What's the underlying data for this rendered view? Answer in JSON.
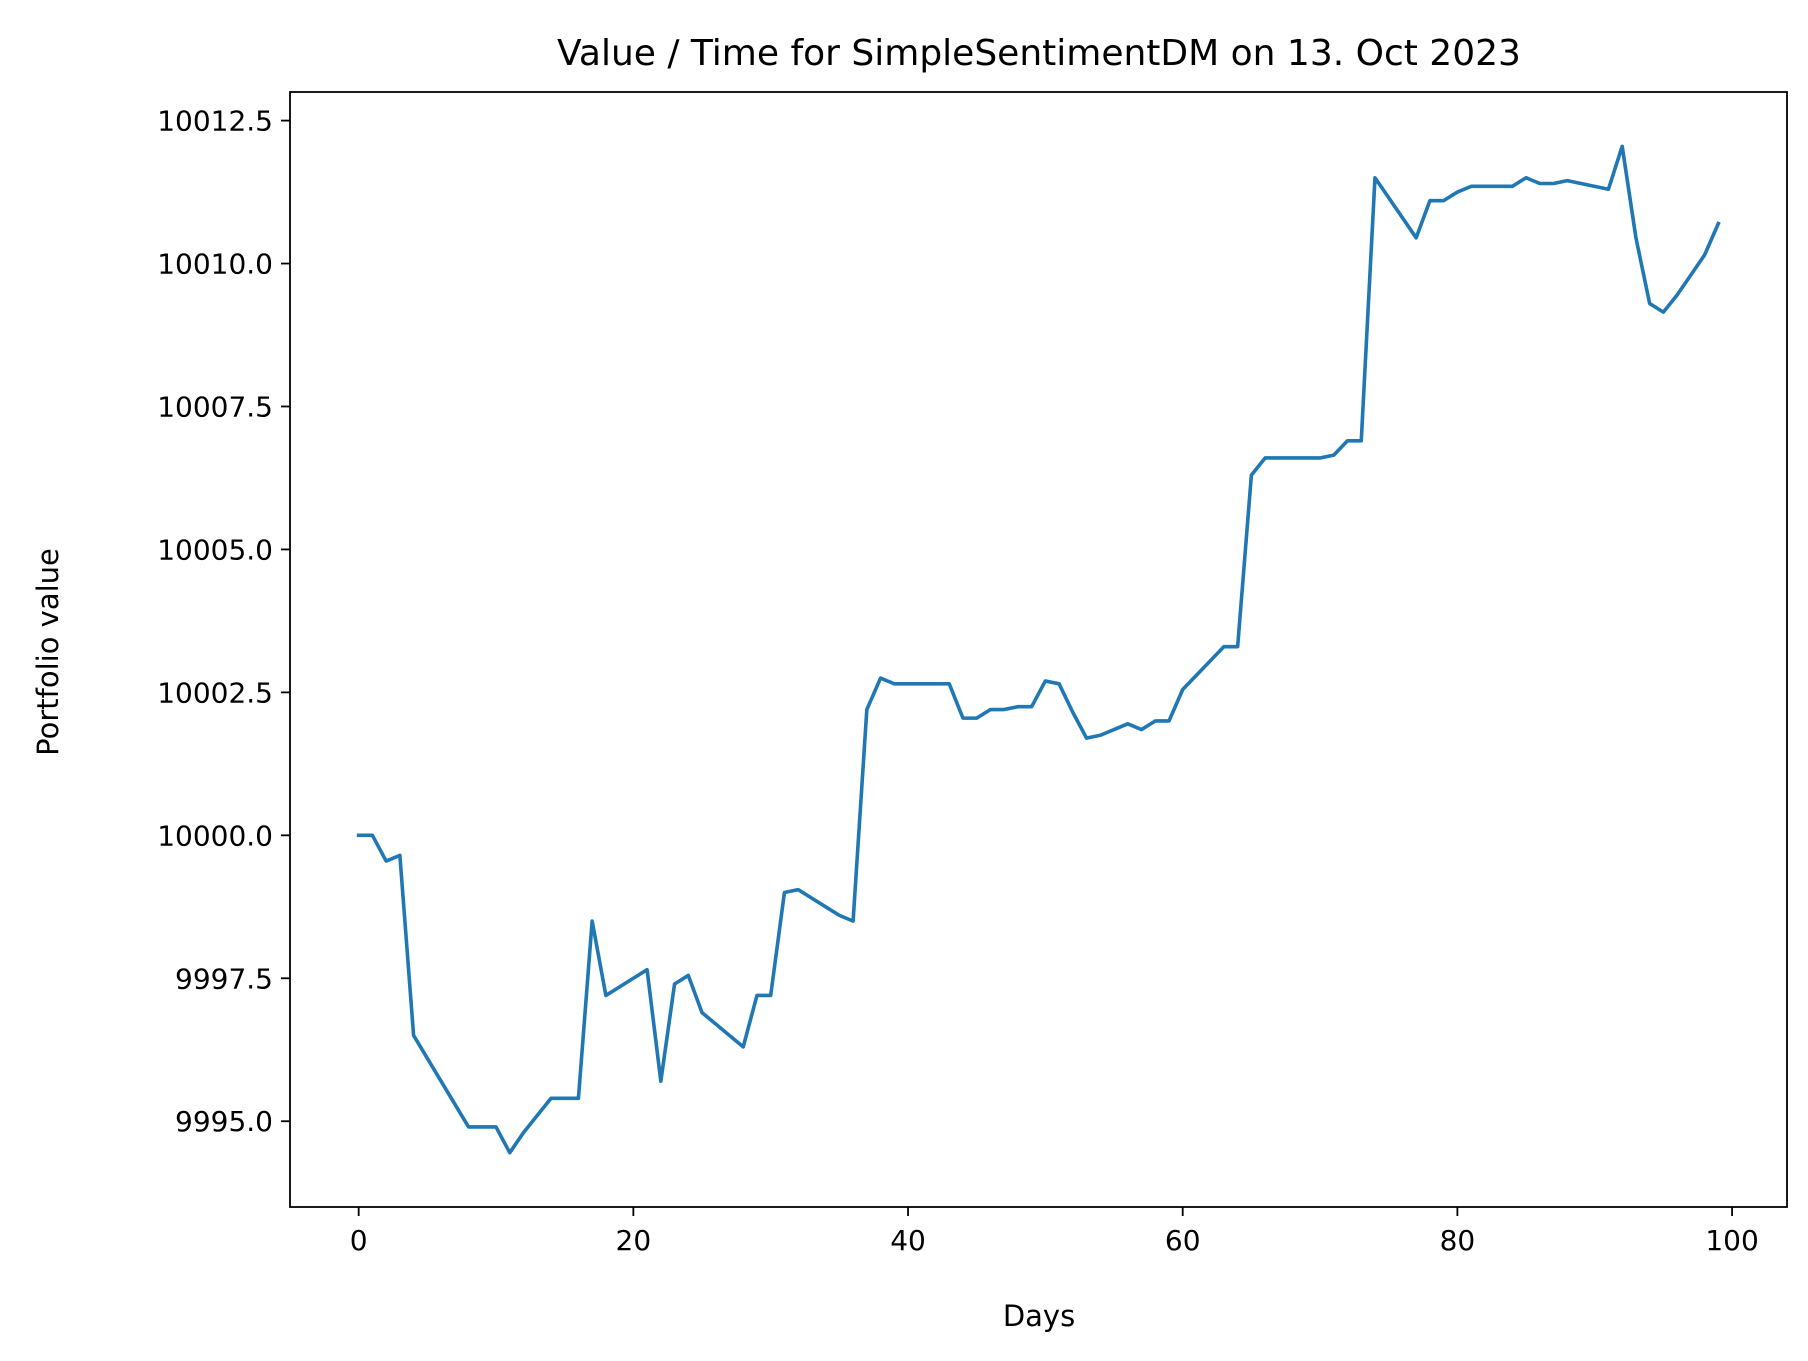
{
  "colors": {
    "line": "#1f77b4",
    "axes": "#000000",
    "background": "#ffffff"
  },
  "chart_data": {
    "type": "line",
    "title": "Value / Time for SimpleSentimentDM on 13. Oct 2023",
    "xlabel": "Days",
    "ylabel": "Portfolio value",
    "xlim": [
      -5,
      104
    ],
    "ylim": [
      9993.5,
      10013.0
    ],
    "grid": false,
    "xticks": [
      0,
      20,
      40,
      60,
      80,
      100
    ],
    "xtick_labels": [
      "0",
      "20",
      "40",
      "60",
      "80",
      "100"
    ],
    "yticks": [
      9995.0,
      9997.5,
      10000.0,
      10002.5,
      10005.0,
      10007.5,
      10010.0,
      10012.5
    ],
    "ytick_labels": [
      "9995.0",
      "9997.5",
      "10000.0",
      "10002.5",
      "10005.0",
      "10007.5",
      "10010.0",
      "10012.5"
    ],
    "series": [
      {
        "x": [
          0,
          1,
          2,
          3,
          4,
          5,
          6,
          7,
          8,
          9,
          10,
          11,
          12,
          13,
          14,
          15,
          16,
          17,
          18,
          19,
          20,
          21,
          22,
          23,
          24,
          25,
          26,
          27,
          28,
          29,
          30,
          31,
          32,
          33,
          34,
          35,
          36,
          37,
          38,
          39,
          40,
          41,
          42,
          43,
          44,
          45,
          46,
          47,
          48,
          49,
          50,
          51,
          52,
          53,
          54,
          55,
          56,
          57,
          58,
          59,
          60,
          61,
          62,
          63,
          64,
          65,
          66,
          67,
          68,
          69,
          70,
          71,
          72,
          73,
          74,
          75,
          76,
          77,
          78,
          79,
          80,
          81,
          82,
          83,
          84,
          85,
          86,
          87,
          88,
          89,
          90,
          91,
          92,
          93,
          94,
          95,
          96,
          97,
          98,
          99
        ],
        "y": [
          10000.0,
          10000.0,
          9999.55,
          9999.65,
          9996.5,
          9996.1,
          9995.7,
          9995.3,
          9994.9,
          9994.9,
          9994.9,
          9994.45,
          9994.8,
          9995.1,
          9995.4,
          9995.4,
          9995.4,
          9998.5,
          9997.2,
          9997.35,
          9997.5,
          9997.65,
          9995.7,
          9997.4,
          9997.55,
          9996.9,
          9996.7,
          9996.5,
          9996.3,
          9997.2,
          9997.2,
          9999.0,
          9999.05,
          9998.9,
          9998.75,
          9998.6,
          9998.5,
          10002.2,
          10002.75,
          10002.65,
          10002.65,
          10002.65,
          10002.65,
          10002.65,
          10002.05,
          10002.05,
          10002.2,
          10002.2,
          10002.25,
          10002.25,
          10002.7,
          10002.65,
          10002.15,
          10001.7,
          10001.75,
          10001.85,
          10001.95,
          10001.85,
          10002.0,
          10002.0,
          10002.55,
          10002.8,
          10003.05,
          10003.3,
          10003.3,
          10006.3,
          10006.6,
          10006.6,
          10006.6,
          10006.6,
          10006.6,
          10006.65,
          10006.9,
          10006.9,
          10011.5,
          10011.15,
          10010.8,
          10010.45,
          10011.1,
          10011.1,
          10011.25,
          10011.35,
          10011.35,
          10011.35,
          10011.35,
          10011.5,
          10011.4,
          10011.4,
          10011.45,
          10011.4,
          10011.35,
          10011.3,
          10012.05,
          10010.45,
          10009.3,
          10009.15,
          10009.45,
          10009.8,
          10010.15,
          10010.7
        ]
      }
    ]
  }
}
